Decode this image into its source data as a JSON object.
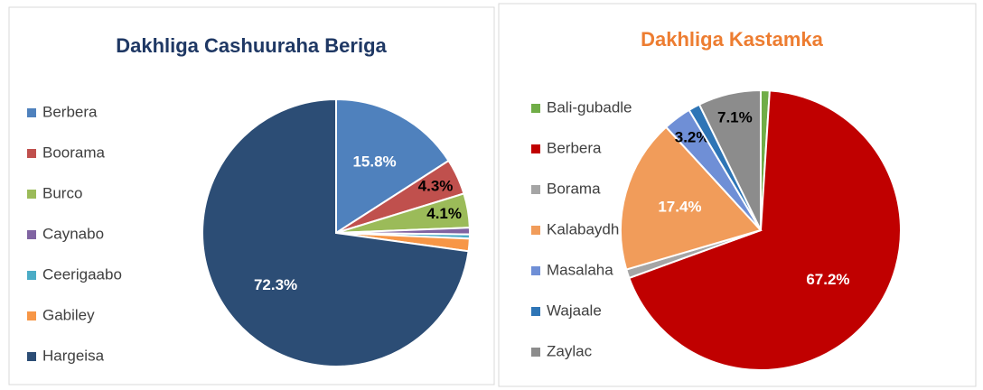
{
  "chart_data": [
    {
      "type": "pie",
      "title": "Dakhliga Cashuuraha Beriga",
      "title_color": "#1f3864",
      "categories": [
        "Berbera",
        "Boorama",
        "Burco",
        "Caynabo",
        "Ceerigaabo",
        "Gabiley",
        "Hargeisa"
      ],
      "values": [
        15.8,
        4.3,
        4.1,
        0.8,
        0.5,
        1.5,
        72.3
      ],
      "value_labels": [
        "15.8%",
        "4.3%",
        "4.1%",
        null,
        null,
        null,
        "72.3%"
      ],
      "colors": [
        "#4f81bd",
        "#c0504d",
        "#9bbb59",
        "#8064a2",
        "#4bacc6",
        "#f79646",
        "#2c4d75"
      ],
      "legend": "left"
    },
    {
      "type": "pie",
      "title": "Dakhliga Kastamka",
      "title_color": "#ed7d31",
      "categories": [
        "Bali-gubadle",
        "Berbera",
        "Borama",
        "Kalabaydh",
        "Masalaha",
        "Wajaale",
        "Zaylac"
      ],
      "values": [
        1.0,
        67.2,
        1.0,
        17.4,
        3.2,
        1.3,
        7.1
      ],
      "value_labels": [
        null,
        "67.2%",
        null,
        "17.4%",
        "3.2%",
        null,
        "7.1%"
      ],
      "colors": [
        "#70ad47",
        "#c00000",
        "#a5a5a5",
        "#f19c5a",
        "#6f8fd6",
        "#2e75b6",
        "#8c8c8c"
      ],
      "legend": "left"
    }
  ]
}
